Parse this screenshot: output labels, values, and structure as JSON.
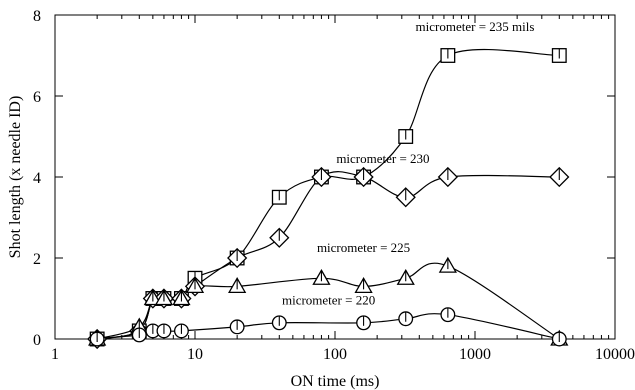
{
  "chart_data": {
    "type": "line",
    "title": "",
    "xlabel": "ON time (ms)",
    "ylabel": "Shot length (x needle ID)",
    "xscale": "log",
    "xlim": [
      1,
      10000
    ],
    "ylim": [
      0,
      8
    ],
    "x_ticks": [
      1,
      10,
      100,
      1000,
      10000
    ],
    "x_tick_labels": [
      "1",
      "10",
      "100",
      "1000",
      "10000"
    ],
    "y_ticks": [
      0,
      2,
      4,
      6,
      8
    ],
    "y_tick_labels": [
      "0",
      "2",
      "4",
      "6",
      "8"
    ],
    "grid": false,
    "legend": "none (series labelled directly on plot)",
    "series": [
      {
        "name": "micrometer = 235 mils",
        "marker": "square",
        "x": [
          2,
          4,
          5,
          6,
          8,
          10,
          20,
          40,
          80,
          160,
          320,
          640,
          4000
        ],
        "y": [
          0,
          0.2,
          1.0,
          1.0,
          1.0,
          1.5,
          2.0,
          3.5,
          4.0,
          4.0,
          5.0,
          7.0,
          7.0
        ]
      },
      {
        "name": "micrometer = 230",
        "marker": "diamond",
        "x": [
          2,
          4,
          5,
          6,
          8,
          10,
          20,
          40,
          80,
          160,
          320,
          640,
          4000
        ],
        "y": [
          0,
          0.2,
          1.0,
          1.0,
          1.0,
          1.3,
          2.0,
          2.5,
          4.0,
          4.0,
          3.5,
          4.0,
          4.0
        ]
      },
      {
        "name": "micrometer = 225",
        "marker": "triangle",
        "x": [
          2,
          4,
          5,
          6,
          8,
          10,
          20,
          80,
          160,
          320,
          640,
          4000
        ],
        "y": [
          0,
          0.3,
          1.0,
          1.0,
          1.0,
          1.3,
          1.3,
          1.5,
          1.3,
          1.5,
          1.8,
          0
        ]
      },
      {
        "name": "micrometer = 220",
        "marker": "circle",
        "x": [
          2,
          4,
          5,
          6,
          8,
          20,
          40,
          160,
          320,
          640,
          4000
        ],
        "y": [
          0,
          0.1,
          0.2,
          0.2,
          0.2,
          0.3,
          0.4,
          0.4,
          0.5,
          0.6,
          0
        ]
      }
    ]
  }
}
